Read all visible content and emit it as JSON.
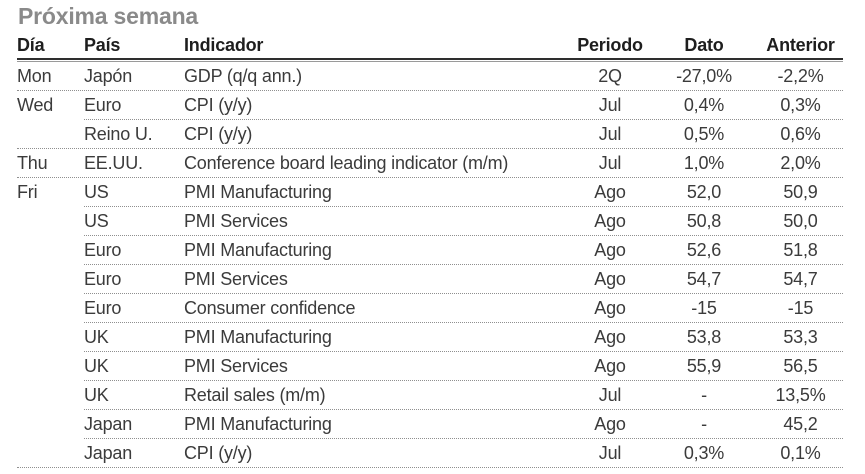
{
  "title": "Próxima semana",
  "colors": {
    "title_gray": "#8a8a8a",
    "text": "#3b3b3b",
    "header_text": "#1e1e1e",
    "rule_dark": "#2e2e2e",
    "rule_light": "#9a9a9a",
    "dotted_separator": "#8f8f8f",
    "background": "#ffffff"
  },
  "table": {
    "columns": [
      {
        "key": "dia",
        "label": "Día"
      },
      {
        "key": "pais",
        "label": "País"
      },
      {
        "key": "indicador",
        "label": "Indicador"
      },
      {
        "key": "periodo",
        "label": "Periodo"
      },
      {
        "key": "dato",
        "label": "Dato"
      },
      {
        "key": "anterior",
        "label": "Anterior"
      }
    ],
    "rows": [
      {
        "dia": "Mon",
        "pais": "Japón",
        "indicador": "GDP (q/q ann.)",
        "periodo": "2Q",
        "dato": "-27,0%",
        "anterior": "-2,2%",
        "sep": "full"
      },
      {
        "dia": "Wed",
        "pais": "Euro",
        "indicador": "CPI (y/y)",
        "periodo": "Jul",
        "dato": "0,4%",
        "anterior": "0,3%",
        "sep": "partial"
      },
      {
        "dia": "",
        "pais": "Reino U.",
        "indicador": "CPI (y/y)",
        "periodo": "Jul",
        "dato": "0,5%",
        "anterior": "0,6%",
        "sep": "full"
      },
      {
        "dia": "Thu",
        "pais": "EE.UU.",
        "indicador": "Conference board leading indicator (m/m)",
        "periodo": "Jul",
        "dato": "1,0%",
        "anterior": "2,0%",
        "sep": "full"
      },
      {
        "dia": "Fri",
        "pais": "US",
        "indicador": "PMI Manufacturing",
        "periodo": "Ago",
        "dato": "52,0",
        "anterior": "50,9",
        "sep": "partial"
      },
      {
        "dia": "",
        "pais": "US",
        "indicador": "PMI Services",
        "periodo": "Ago",
        "dato": "50,8",
        "anterior": "50,0",
        "sep": "partial"
      },
      {
        "dia": "",
        "pais": "Euro",
        "indicador": "PMI Manufacturing",
        "periodo": "Ago",
        "dato": "52,6",
        "anterior": "51,8",
        "sep": "partial"
      },
      {
        "dia": "",
        "pais": "Euro",
        "indicador": "PMI Services",
        "periodo": "Ago",
        "dato": "54,7",
        "anterior": "54,7",
        "sep": "partial"
      },
      {
        "dia": "",
        "pais": "Euro",
        "indicador": "Consumer confidence",
        "periodo": "Ago",
        "dato": "-15",
        "anterior": "-15",
        "sep": "partial"
      },
      {
        "dia": "",
        "pais": "UK",
        "indicador": "PMI Manufacturing",
        "periodo": "Ago",
        "dato": "53,8",
        "anterior": "53,3",
        "sep": "partial"
      },
      {
        "dia": "",
        "pais": "UK",
        "indicador": "PMI Services",
        "periodo": "Ago",
        "dato": "55,9",
        "anterior": "56,5",
        "sep": "partial"
      },
      {
        "dia": "",
        "pais": "UK",
        "indicador": "Retail sales (m/m)",
        "periodo": "Jul",
        "dato": "-",
        "anterior": "13,5%",
        "sep": "partial"
      },
      {
        "dia": "",
        "pais": "Japan",
        "indicador": "PMI Manufacturing",
        "periodo": "Ago",
        "dato": "-",
        "anterior": "45,2",
        "sep": "partial"
      },
      {
        "dia": "",
        "pais": "Japan",
        "indicador": "CPI (y/y)",
        "periodo": "Jul",
        "dato": "0,3%",
        "anterior": "0,1%",
        "sep": "full"
      }
    ]
  }
}
